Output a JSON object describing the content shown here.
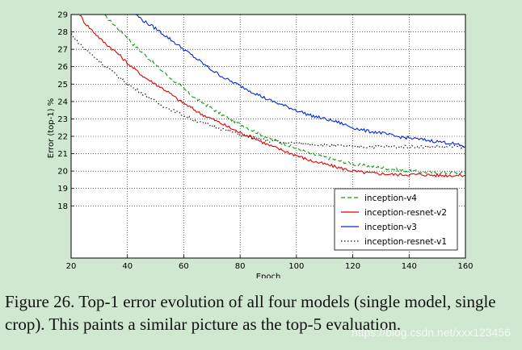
{
  "caption": "Figure 26. Top-1 error evolution of all four models (single model, single crop). This paints a similar picture as the top-5 evaluation.",
  "watermark": "https://blog.csdn.net/xxx123456",
  "chart_data": {
    "type": "line",
    "title": "",
    "xlabel": "Epoch",
    "ylabel": "Error (top-1) %",
    "xlim": [
      20,
      160
    ],
    "ylim": [
      15,
      29
    ],
    "xticks": [
      20,
      40,
      60,
      80,
      100,
      120,
      140,
      160
    ],
    "yticks": [
      18,
      19,
      20,
      21,
      22,
      23,
      24,
      25,
      26,
      27,
      28,
      29
    ],
    "grid": true,
    "legend_position": "bottom-right",
    "series": [
      {
        "name": "inception-v4",
        "color": "#119911",
        "dash": "dashed",
        "x": [
          32,
          34,
          36,
          38,
          40,
          42,
          44,
          46,
          48,
          50,
          52,
          55,
          58,
          61,
          64,
          67,
          70,
          75,
          80,
          85,
          90,
          95,
          100,
          105,
          110,
          115,
          120,
          125,
          130,
          135,
          140,
          145,
          150,
          155,
          160
        ],
        "y": [
          28.9,
          28.6,
          28.3,
          28.0,
          27.7,
          27.3,
          27.0,
          26.7,
          26.4,
          26.1,
          25.8,
          25.4,
          25.0,
          24.6,
          24.2,
          23.9,
          23.6,
          23.1,
          22.7,
          22.3,
          21.9,
          21.6,
          21.3,
          21.0,
          20.8,
          20.6,
          20.4,
          20.3,
          20.2,
          20.1,
          20.0,
          19.95,
          19.9,
          19.9,
          19.9
        ]
      },
      {
        "name": "inception-resnet-v2",
        "color": "#e00000",
        "dash": "solid",
        "x": [
          23,
          25,
          28,
          31,
          34,
          37,
          40,
          43,
          46,
          50,
          54,
          58,
          62,
          66,
          70,
          75,
          80,
          85,
          90,
          95,
          100,
          105,
          110,
          115,
          120,
          125,
          130,
          135,
          140,
          145,
          150,
          155,
          160
        ],
        "y": [
          29.0,
          28.5,
          28.0,
          27.5,
          27.1,
          26.7,
          26.2,
          25.8,
          25.4,
          25.0,
          24.6,
          24.1,
          23.7,
          23.3,
          23.0,
          22.6,
          22.2,
          21.9,
          21.5,
          21.2,
          20.9,
          20.6,
          20.4,
          20.2,
          20.0,
          19.9,
          19.85,
          19.8,
          19.8,
          19.8,
          19.75,
          19.75,
          19.75
        ]
      },
      {
        "name": "inception-v3",
        "color": "#0028e0",
        "dash": "solid",
        "x": [
          43,
          46,
          50,
          55,
          60,
          65,
          70,
          75,
          80,
          85,
          90,
          95,
          100,
          105,
          110,
          115,
          120,
          125,
          130,
          135,
          140,
          145,
          150,
          155,
          160
        ],
        "y": [
          29.0,
          28.6,
          28.2,
          27.6,
          27.0,
          26.4,
          25.8,
          25.3,
          24.9,
          24.5,
          24.1,
          23.8,
          23.5,
          23.2,
          23.0,
          22.8,
          22.5,
          22.3,
          22.2,
          22.0,
          21.9,
          21.8,
          21.7,
          21.6,
          21.4
        ]
      },
      {
        "name": "inception-resnet-v1",
        "color": "#111111",
        "dash": "dotted",
        "x": [
          20,
          22,
          25,
          28,
          31,
          34,
          37,
          40,
          44,
          48,
          52,
          56,
          60,
          64,
          68,
          72,
          76,
          80,
          85,
          90,
          95,
          100,
          105,
          110,
          115,
          120,
          130,
          140,
          150,
          160
        ],
        "y": [
          27.9,
          27.5,
          27.0,
          26.6,
          26.2,
          25.8,
          25.4,
          25.0,
          24.6,
          24.2,
          23.8,
          23.5,
          23.2,
          22.9,
          22.7,
          22.5,
          22.3,
          22.1,
          21.9,
          21.75,
          21.65,
          21.6,
          21.55,
          21.5,
          21.45,
          21.4,
          21.4,
          21.4,
          21.4,
          21.4
        ]
      }
    ]
  }
}
